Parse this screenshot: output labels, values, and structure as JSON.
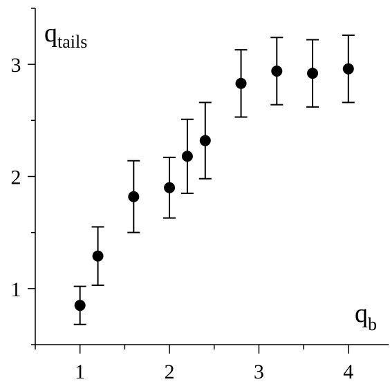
{
  "chart_data": {
    "type": "scatter",
    "x": [
      1.0,
      1.2,
      1.6,
      2.0,
      2.2,
      2.4,
      2.8,
      3.2,
      3.6,
      4.0
    ],
    "y": [
      0.85,
      1.29,
      1.82,
      1.9,
      2.18,
      2.32,
      2.83,
      2.94,
      2.92,
      2.96
    ],
    "y_err_low": [
      0.17,
      0.26,
      0.32,
      0.27,
      0.33,
      0.34,
      0.3,
      0.3,
      0.3,
      0.3
    ],
    "y_err_high": [
      0.17,
      0.26,
      0.32,
      0.27,
      0.33,
      0.34,
      0.3,
      0.3,
      0.3,
      0.3
    ],
    "xlim": [
      0.5,
      4.45
    ],
    "ylim": [
      0.5,
      3.5
    ],
    "x_ticks": [
      1,
      2,
      3,
      4
    ],
    "x_tick_labels": [
      "1",
      "2",
      "3",
      "4"
    ],
    "x_minor_ticks": [
      0.5,
      1.5,
      2.5,
      3.5
    ],
    "y_ticks": [
      1,
      2,
      3
    ],
    "y_tick_labels": [
      "1",
      "2",
      "3"
    ],
    "y_minor_ticks": [
      0.5,
      1.5,
      2.5,
      3.5
    ],
    "xlabel": {
      "main": "q",
      "sub": "b"
    },
    "ylabel": {
      "main": "q",
      "sub": "tails"
    },
    "grid": false,
    "marker_color": "#000000",
    "axis_color": "#000000"
  }
}
